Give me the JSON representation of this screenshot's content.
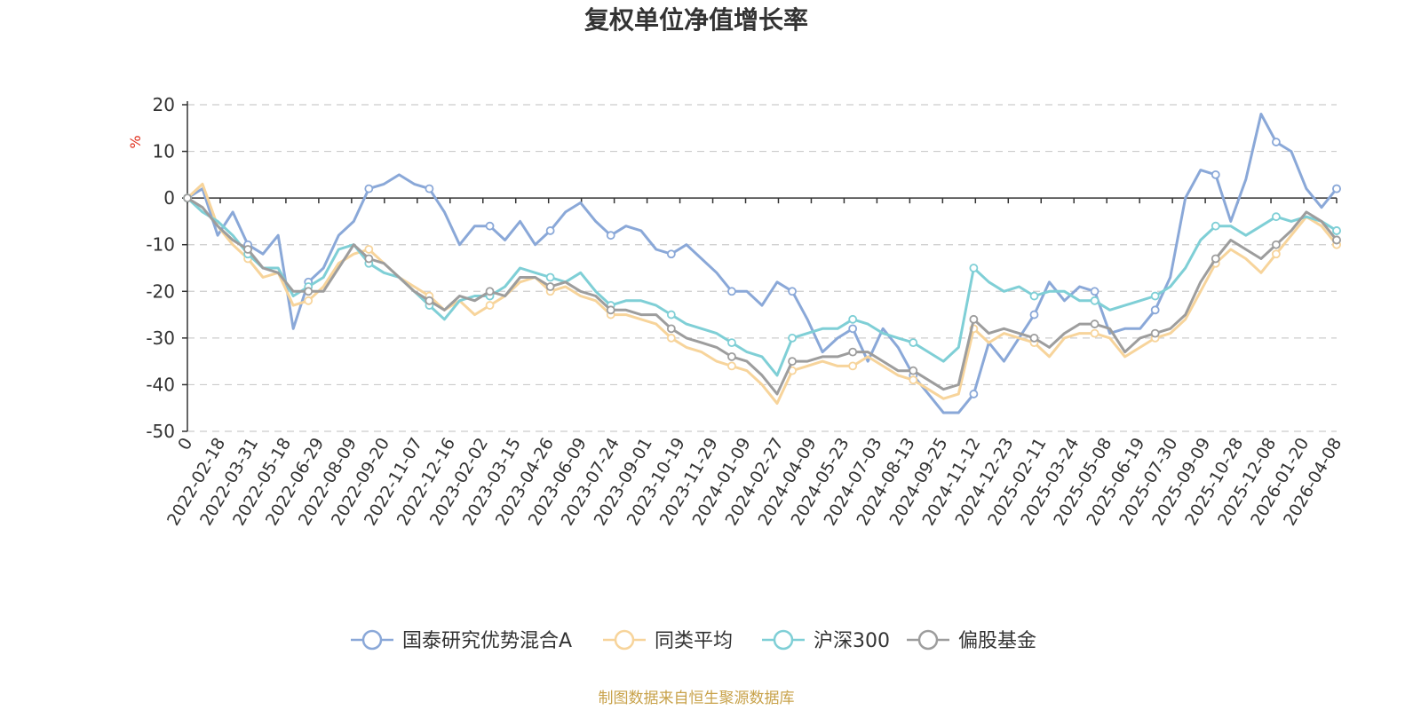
{
  "chart_data": {
    "type": "line",
    "title": "复权单位净值增长率",
    "ylabel": "%",
    "ylim": [
      -50,
      20
    ],
    "yticks": [
      20,
      10,
      0,
      -10,
      -20,
      -30,
      -40,
      -50
    ],
    "grid": true,
    "legend_position": "bottom",
    "x_labels": [
      "0",
      "2022-02-18",
      "2022-03-31",
      "2022-05-18",
      "2022-06-29",
      "2022-08-09",
      "2022-09-20",
      "2022-11-07",
      "2022-12-16",
      "2023-02-02",
      "2023-03-15",
      "2023-04-26",
      "2023-06-09",
      "2023-07-24",
      "2023-09-01",
      "2023-10-19",
      "2023-11-29",
      "2024-01-09",
      "2024-02-27",
      "2024-04-09",
      "2024-05-23",
      "2024-07-03",
      "2024-08-13",
      "2024-09-25",
      "2024-11-12",
      "2024-12-23",
      "2025-02-11",
      "2025-03-24",
      "2025-05-08",
      "2025-06-19",
      "2025-07-30",
      "2025-09-09",
      "2025-10-28",
      "2025-12-08",
      "2026-01-20",
      "2026-04-08"
    ],
    "series": [
      {
        "name": "国泰研究优势混合A",
        "color": "#8aa8d8",
        "values": [
          0,
          2,
          -8,
          -3,
          -10,
          -12,
          -8,
          -28,
          -18,
          -15,
          -8,
          -5,
          2,
          3,
          5,
          3,
          2,
          -3,
          -10,
          -6,
          -6,
          -9,
          -5,
          -10,
          -7,
          -3,
          -1,
          -5,
          -8,
          -6,
          -7,
          -11,
          -12,
          -10,
          -13,
          -16,
          -20,
          -20,
          -23,
          -18,
          -20,
          -26,
          -33,
          -30,
          -28,
          -35,
          -28,
          -32,
          -38,
          -42,
          -46,
          -46,
          -42,
          -31,
          -35,
          -30,
          -25,
          -18,
          -22,
          -19,
          -20,
          -29,
          -28,
          -28,
          -24,
          -17,
          0,
          6,
          5,
          -5,
          4,
          18,
          12,
          10,
          2,
          -2,
          2
        ]
      },
      {
        "name": "同类平均",
        "color": "#f7d49b",
        "values": [
          0,
          3,
          -6,
          -10,
          -13,
          -17,
          -16,
          -23,
          -22,
          -19,
          -14,
          -12,
          -11,
          -14,
          -17,
          -19,
          -21,
          -24,
          -22,
          -25,
          -23,
          -21,
          -18,
          -17,
          -20,
          -19,
          -21,
          -22,
          -25,
          -25,
          -26,
          -27,
          -30,
          -32,
          -33,
          -35,
          -36,
          -37,
          -40,
          -44,
          -37,
          -36,
          -35,
          -36,
          -36,
          -34,
          -36,
          -38,
          -39,
          -41,
          -43,
          -42,
          -28,
          -31,
          -29,
          -30,
          -31,
          -34,
          -30,
          -29,
          -29,
          -30,
          -34,
          -32,
          -30,
          -29,
          -26,
          -20,
          -14,
          -11,
          -13,
          -16,
          -12,
          -8,
          -4,
          -6,
          -10
        ]
      },
      {
        "name": "沪深300",
        "color": "#7fcfd6",
        "values": [
          0,
          -3,
          -5,
          -8,
          -12,
          -15,
          -15,
          -21,
          -19,
          -17,
          -11,
          -10,
          -14,
          -16,
          -17,
          -20,
          -23,
          -26,
          -22,
          -21,
          -21,
          -19,
          -15,
          -16,
          -17,
          -18,
          -16,
          -20,
          -23,
          -22,
          -22,
          -23,
          -25,
          -27,
          -28,
          -29,
          -31,
          -33,
          -34,
          -38,
          -30,
          -29,
          -28,
          -28,
          -26,
          -27,
          -29,
          -30,
          -31,
          -33,
          -35,
          -32,
          -15,
          -18,
          -20,
          -19,
          -21,
          -20,
          -20,
          -22,
          -22,
          -24,
          -23,
          -22,
          -21,
          -19,
          -15,
          -9,
          -6,
          -6,
          -8,
          -6,
          -4,
          -5,
          -4,
          -5,
          -7
        ]
      },
      {
        "name": "偏股基金",
        "color": "#9d9d9d",
        "values": [
          0,
          -2,
          -6,
          -9,
          -11,
          -15,
          -16,
          -20,
          -20,
          -20,
          -15,
          -10,
          -13,
          -14,
          -17,
          -20,
          -22,
          -24,
          -21,
          -22,
          -20,
          -21,
          -17,
          -17,
          -19,
          -18,
          -20,
          -21,
          -24,
          -24,
          -25,
          -25,
          -28,
          -30,
          -31,
          -32,
          -34,
          -35,
          -38,
          -42,
          -35,
          -35,
          -34,
          -34,
          -33,
          -33,
          -35,
          -37,
          -37,
          -39,
          -41,
          -40,
          -26,
          -29,
          -28,
          -29,
          -30,
          -32,
          -29,
          -27,
          -27,
          -28,
          -33,
          -30,
          -29,
          -28,
          -25,
          -18,
          -13,
          -9,
          -11,
          -13,
          -10,
          -7,
          -3,
          -5,
          -9
        ]
      }
    ]
  },
  "source": "制图数据来自恒生聚源数据库"
}
